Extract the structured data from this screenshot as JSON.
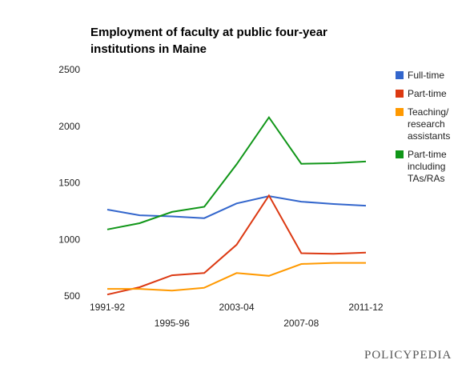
{
  "chart_data": {
    "type": "line",
    "title": "Employment of faculty at public four-year institutions in Maine",
    "categories": [
      "1991-92",
      null,
      "1995-96",
      null,
      "2003-04",
      null,
      "2007-08",
      null,
      "2011-12"
    ],
    "series": [
      {
        "name": "Full-time",
        "color": "#3366cc",
        "values": [
          1270,
          1220,
          1210,
          1195,
          1325,
          1390,
          1340,
          1320,
          1305
        ]
      },
      {
        "name": "Part-time",
        "color": "#dc3912",
        "values": [
          520,
          585,
          690,
          710,
          960,
          1395,
          885,
          880,
          890
        ]
      },
      {
        "name": "Teaching/ research assistants",
        "color": "#ff9900",
        "values": [
          570,
          570,
          555,
          580,
          710,
          685,
          790,
          800,
          800
        ]
      },
      {
        "name": "Part-time including TAs/RAs",
        "color": "#109618",
        "values": [
          1095,
          1150,
          1250,
          1295,
          1670,
          2085,
          1675,
          1680,
          1695
        ]
      }
    ],
    "ylim": [
      500,
      2500
    ],
    "yticks": [
      500,
      1000,
      1500,
      2000,
      2500
    ],
    "grid": false,
    "legend": "right",
    "source": "POLICYPEDIA"
  }
}
